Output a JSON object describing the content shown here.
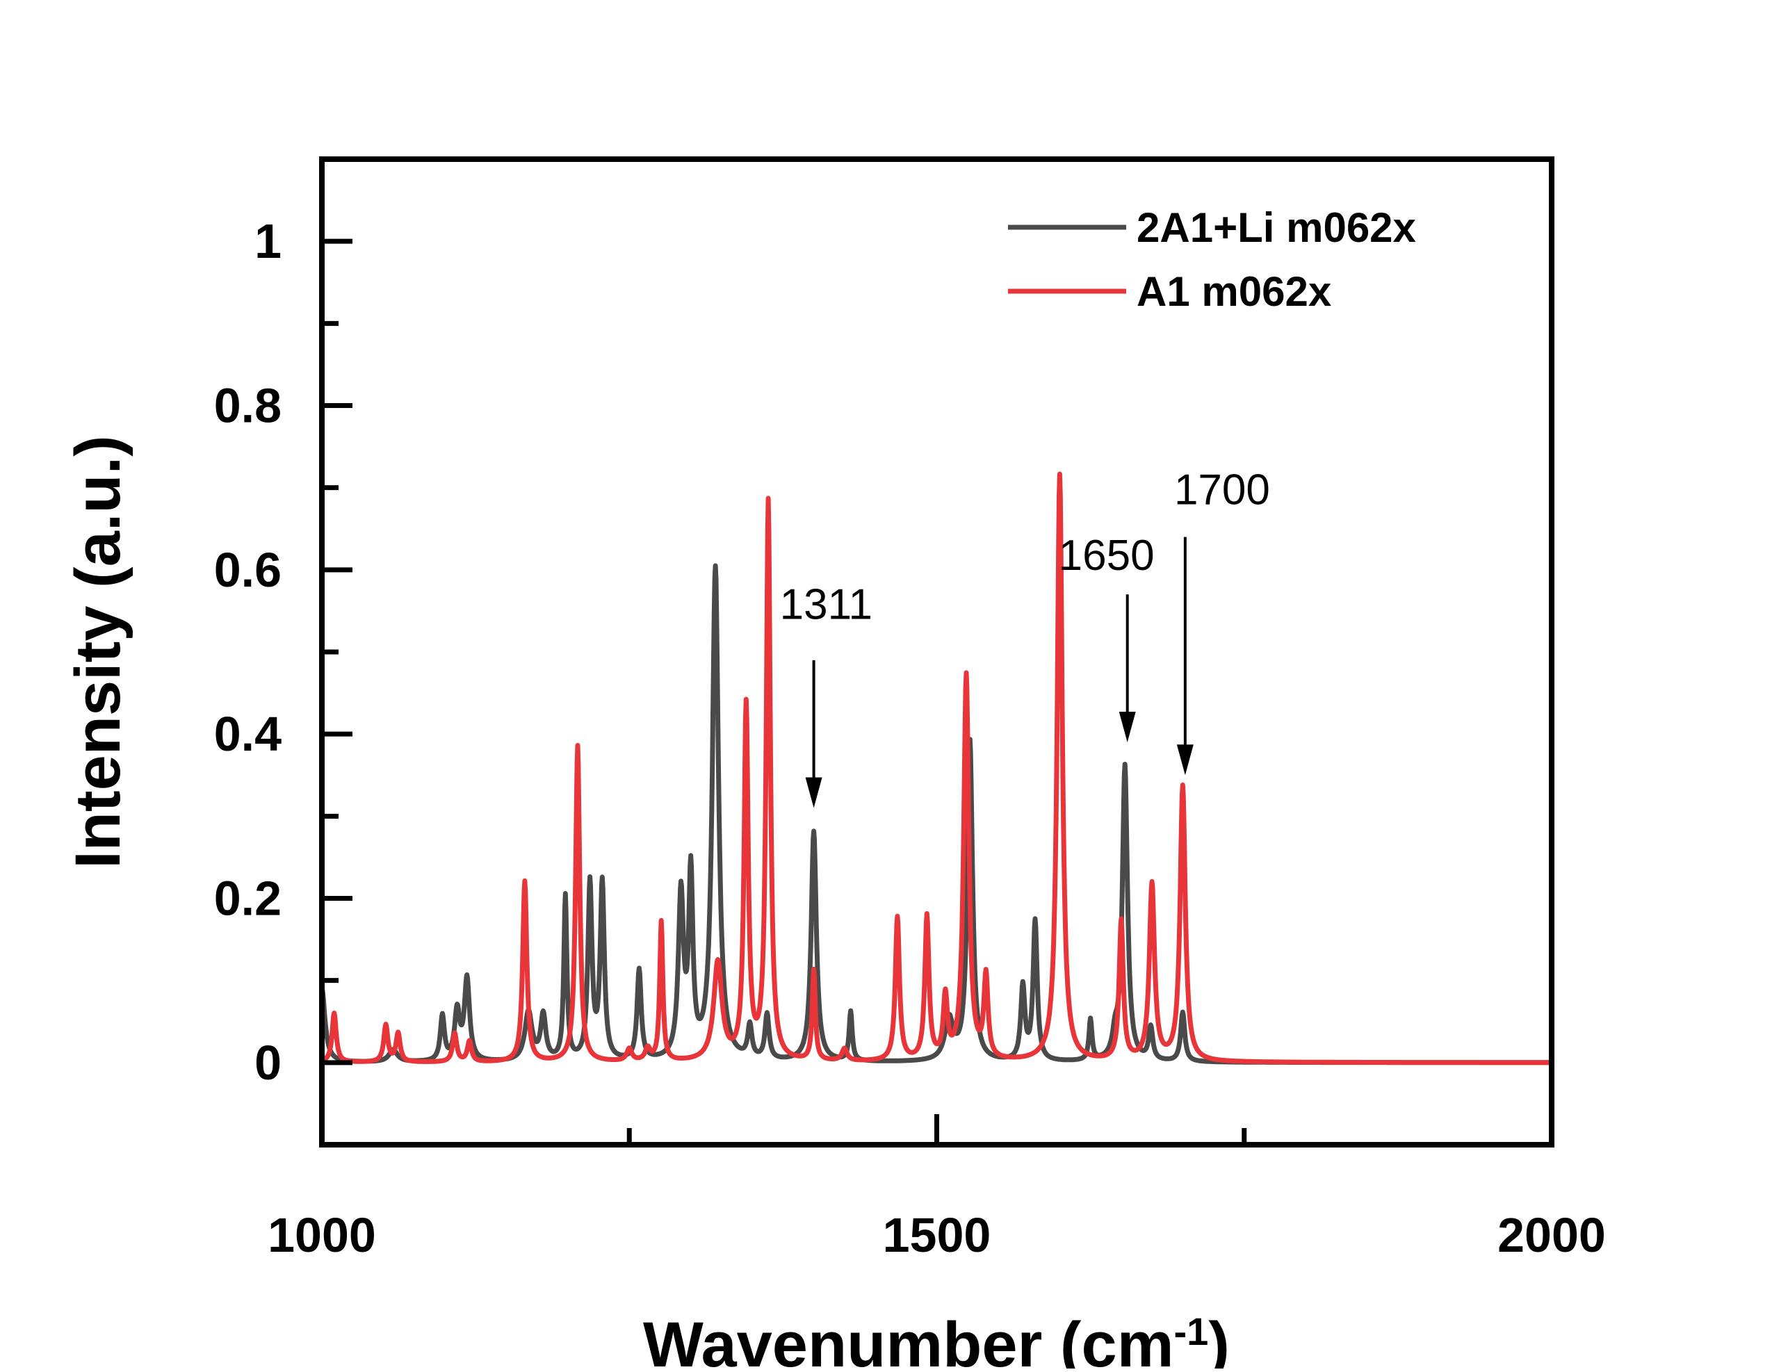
{
  "chart_data": {
    "type": "line",
    "title": "",
    "xlabel": "Wavenumber (cm",
    "xlabel_sup": "-1",
    "xlabel_end": ")",
    "ylabel": "Intensity (a.u.)",
    "xlim": [
      1000,
      2000
    ],
    "ylim": [
      -0.1,
      1.1
    ],
    "x_ticks": [
      {
        "value": 1000,
        "label": "1000"
      },
      {
        "value": 1500,
        "label": "1500"
      },
      {
        "value": 2000,
        "label": "2000"
      }
    ],
    "x_minor_ticks": [
      1250,
      1750
    ],
    "y_ticks": [
      {
        "value": 0,
        "label": "0"
      },
      {
        "value": 0.2,
        "label": "0.2"
      },
      {
        "value": 0.4,
        "label": "0.4"
      },
      {
        "value": 0.6,
        "label": "0.6"
      },
      {
        "value": 0.8,
        "label": "0.8"
      },
      {
        "value": 1.0,
        "label": "1"
      }
    ],
    "y_minor_ticks": [
      0.1,
      0.3,
      0.5,
      0.7,
      0.9
    ],
    "grid": false,
    "legend_position": "top-right",
    "series": [
      {
        "name": "2A1+Li m062x",
        "color": "#4a4a4a",
        "baseline": 0.0,
        "peaks": [
          {
            "x": 1000,
            "h": 0.09,
            "w": 6
          },
          {
            "x": 1058,
            "h": 0.015,
            "w": 8
          },
          {
            "x": 1098,
            "h": 0.055,
            "w": 4
          },
          {
            "x": 1110,
            "h": 0.06,
            "w": 5
          },
          {
            "x": 1118,
            "h": 0.1,
            "w": 5
          },
          {
            "x": 1168,
            "h": 0.06,
            "w": 7
          },
          {
            "x": 1180,
            "h": 0.055,
            "w": 5
          },
          {
            "x": 1198,
            "h": 0.2,
            "w": 3
          },
          {
            "x": 1218,
            "h": 0.215,
            "w": 4
          },
          {
            "x": 1228,
            "h": 0.215,
            "w": 4
          },
          {
            "x": 1258,
            "h": 0.11,
            "w": 4
          },
          {
            "x": 1292,
            "h": 0.2,
            "w": 5
          },
          {
            "x": 1300,
            "h": 0.22,
            "w": 4
          },
          {
            "x": 1320,
            "h": 0.6,
            "w": 6
          },
          {
            "x": 1348,
            "h": 0.04,
            "w": 4
          },
          {
            "x": 1362,
            "h": 0.055,
            "w": 4
          },
          {
            "x": 1400,
            "h": 0.28,
            "w": 5
          },
          {
            "x": 1430,
            "h": 0.06,
            "w": 3
          },
          {
            "x": 1510,
            "h": 0.05,
            "w": 8
          },
          {
            "x": 1527,
            "h": 0.39,
            "w": 5
          },
          {
            "x": 1570,
            "h": 0.09,
            "w": 4
          },
          {
            "x": 1580,
            "h": 0.17,
            "w": 4
          },
          {
            "x": 1625,
            "h": 0.05,
            "w": 3
          },
          {
            "x": 1645,
            "h": 0.025,
            "w": 5
          },
          {
            "x": 1653,
            "h": 0.36,
            "w": 5
          },
          {
            "x": 1674,
            "h": 0.04,
            "w": 4
          },
          {
            "x": 1700,
            "h": 0.06,
            "w": 4
          }
        ]
      },
      {
        "name": "A1 m062x",
        "color": "#e8353a",
        "baseline": 0.0,
        "peaks": [
          {
            "x": 1010,
            "h": 0.06,
            "w": 4
          },
          {
            "x": 1052,
            "h": 0.045,
            "w": 4
          },
          {
            "x": 1062,
            "h": 0.035,
            "w": 4
          },
          {
            "x": 1108,
            "h": 0.035,
            "w": 4
          },
          {
            "x": 1120,
            "h": 0.025,
            "w": 4
          },
          {
            "x": 1165,
            "h": 0.22,
            "w": 4
          },
          {
            "x": 1208,
            "h": 0.385,
            "w": 4
          },
          {
            "x": 1250,
            "h": 0.015,
            "w": 5
          },
          {
            "x": 1265,
            "h": 0.015,
            "w": 5
          },
          {
            "x": 1276,
            "h": 0.17,
            "w": 3
          },
          {
            "x": 1322,
            "h": 0.12,
            "w": 8
          },
          {
            "x": 1345,
            "h": 0.43,
            "w": 4
          },
          {
            "x": 1363,
            "h": 0.68,
            "w": 4
          },
          {
            "x": 1400,
            "h": 0.11,
            "w": 3
          },
          {
            "x": 1425,
            "h": 0.015,
            "w": 5
          },
          {
            "x": 1468,
            "h": 0.175,
            "w": 4
          },
          {
            "x": 1492,
            "h": 0.175,
            "w": 4
          },
          {
            "x": 1507,
            "h": 0.075,
            "w": 4
          },
          {
            "x": 1524,
            "h": 0.47,
            "w": 5
          },
          {
            "x": 1540,
            "h": 0.1,
            "w": 4
          },
          {
            "x": 1600,
            "h": 0.715,
            "w": 5
          },
          {
            "x": 1650,
            "h": 0.17,
            "w": 4
          },
          {
            "x": 1675,
            "h": 0.215,
            "w": 5
          },
          {
            "x": 1700,
            "h": 0.335,
            "w": 5
          }
        ]
      }
    ],
    "annotations": [
      {
        "label": "1311",
        "x": 1400,
        "tip_y": 0.31,
        "tail_y": 0.49,
        "label_y": 0.54,
        "label_x": 1410
      },
      {
        "label": "1650",
        "x": 1655,
        "tip_y": 0.39,
        "tail_y": 0.57,
        "label_y": 0.6,
        "label_x": 1638
      },
      {
        "label": "1700",
        "x": 1702,
        "tip_y": 0.35,
        "tail_y": 0.64,
        "label_y": 0.68,
        "label_x": 1732
      }
    ]
  }
}
